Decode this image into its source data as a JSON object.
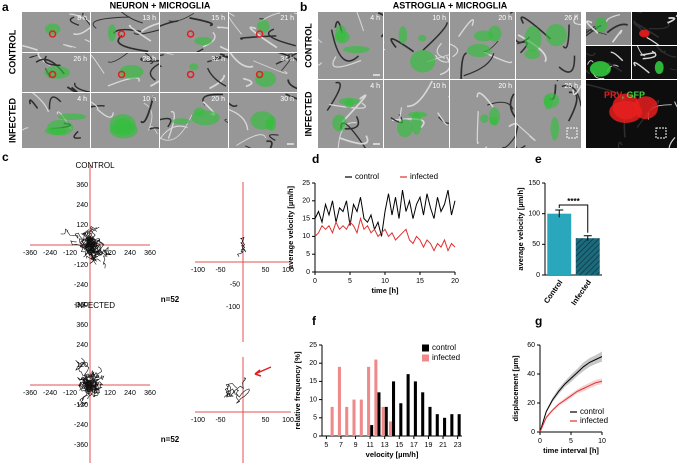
{
  "panel_a": {
    "letter": "a",
    "title": "NEURON + MICROGLIA",
    "rows": [
      {
        "label": "CONTROL",
        "times": [
          [
            "8 h",
            "13 h",
            "15 h",
            "21 h"
          ],
          [
            "26 h",
            "28 h",
            "32 h",
            "34 h"
          ]
        ]
      },
      {
        "label": "INFECTED",
        "times": [
          [
            "4 h",
            "10 h",
            "20 h",
            "30 h"
          ]
        ]
      }
    ]
  },
  "panel_b": {
    "letter": "b",
    "title": "ASTROGLIA + MICROGLIA",
    "rows": [
      {
        "label": "CONTROL",
        "times": [
          "4 h",
          "10 h",
          "20 h",
          "26 h"
        ]
      },
      {
        "label": "INFECTED",
        "times": [
          "4 h",
          "10 h",
          "20 h",
          "26 h"
        ]
      }
    ],
    "inset_label": [
      "PRV",
      ", GFP"
    ]
  },
  "panel_c": {
    "letter": "c",
    "plots": [
      {
        "title": "CONTROL",
        "n": "n=52"
      },
      {
        "title": "INFECTED",
        "n": "n=52"
      }
    ],
    "overview_ticks": [
      -360,
      -240,
      -120,
      120,
      240,
      360
    ],
    "zoom_xticks": [
      -100,
      -50,
      50,
      100
    ],
    "zoom_yticks": [
      -50,
      -100
    ]
  },
  "chart_data": [
    {
      "type": "line",
      "letter": "d",
      "ylabel": "average velocity [µm/h]",
      "xlabel": "time [h]",
      "x": [
        0,
        0.5,
        1,
        1.5,
        2,
        2.5,
        3,
        3.5,
        4,
        4.5,
        5,
        5.5,
        6,
        6.5,
        7,
        7.5,
        8,
        8.5,
        9,
        9.5,
        10,
        10.5,
        11,
        11.5,
        12,
        12.5,
        13,
        13.5,
        14,
        14.5,
        15,
        15.5,
        16,
        16.5,
        17,
        17.5,
        18,
        18.5,
        19,
        19.5,
        20
      ],
      "xlim": [
        0,
        20
      ],
      "xticks": [
        0,
        5,
        10,
        15,
        20
      ],
      "ylim": [
        0,
        25
      ],
      "yticks": [
        0,
        5,
        10,
        15,
        20,
        25
      ],
      "legend": "top",
      "series": [
        {
          "name": "control",
          "color": "#000000",
          "values": [
            15,
            17,
            14,
            19,
            16,
            20,
            14,
            18,
            17,
            20,
            13,
            19,
            17,
            21,
            15,
            14,
            16,
            12,
            14,
            10,
            17,
            22,
            16,
            21,
            15,
            23,
            17,
            20,
            15,
            19,
            21,
            16,
            22,
            18,
            15,
            21,
            17,
            19,
            23,
            16,
            20
          ]
        },
        {
          "name": "infected",
          "color": "#e03030",
          "values": [
            10,
            11,
            13,
            12,
            13,
            11,
            14,
            12,
            13,
            12,
            14,
            13,
            11,
            15,
            12,
            13,
            11,
            12,
            10,
            11,
            12,
            10,
            11,
            9,
            10,
            11,
            12,
            9,
            8,
            10,
            9,
            7,
            9,
            8,
            6,
            8,
            7,
            9,
            6,
            8,
            7
          ]
        }
      ]
    },
    {
      "type": "bar",
      "letter": "e",
      "ylabel": "average velocity [µm/h]",
      "categories": [
        "Control",
        "Infected"
      ],
      "values": [
        100,
        60
      ],
      "errors": [
        6,
        4
      ],
      "colors": [
        "#2aa7bd",
        "#1c6b7c"
      ],
      "hatch": [
        false,
        true
      ],
      "ylim": [
        0,
        150
      ],
      "yticks": [
        0,
        50,
        100,
        150
      ],
      "annotation": "****"
    },
    {
      "type": "grouped-bar",
      "letter": "f",
      "ylabel": "relative frequency [%]",
      "xlabel": "velocity [µm/h]",
      "x": [
        5,
        6,
        7,
        8,
        9,
        10,
        11,
        12,
        13,
        14,
        15,
        16,
        17,
        18,
        19,
        20,
        21,
        22,
        23
      ],
      "xlim": [
        4.4,
        23.6
      ],
      "xticks": [
        5,
        7,
        9,
        11,
        13,
        15,
        17,
        19,
        21,
        23
      ],
      "ylim": [
        0,
        25
      ],
      "yticks": [
        0,
        5,
        10,
        15,
        20,
        25
      ],
      "legend": "top-right",
      "series": [
        {
          "name": "control",
          "color": "#000000",
          "values": [
            0,
            0,
            0,
            0,
            0,
            0,
            3,
            12,
            8,
            15,
            9,
            17,
            15,
            12,
            8,
            6,
            5,
            6,
            6
          ]
        },
        {
          "name": "infected",
          "color": "#f08a8a",
          "values": [
            0,
            8,
            19,
            8,
            10,
            10,
            19,
            21,
            8,
            4,
            0,
            0,
            0,
            0,
            0,
            0,
            0,
            0,
            0
          ]
        }
      ]
    },
    {
      "type": "band-line",
      "letter": "g",
      "ylabel": "displacement [µm]",
      "xlabel": "time interval [h]",
      "x": [
        0,
        1,
        2,
        3,
        4,
        5,
        6,
        7,
        8,
        9,
        10
      ],
      "xlim": [
        0,
        10
      ],
      "xticks": [
        0,
        5,
        10
      ],
      "ylim": [
        0,
        60
      ],
      "yticks": [
        0,
        20,
        40,
        60
      ],
      "legend": "bottom-right",
      "series": [
        {
          "name": "control",
          "color": "#000000",
          "values": [
            0,
            14,
            22,
            28,
            33,
            37,
            41,
            45,
            48,
            50,
            52
          ],
          "errors": [
            0,
            1,
            1.5,
            2,
            2,
            2.5,
            2.5,
            3,
            3,
            3,
            3.5
          ]
        },
        {
          "name": "infected",
          "color": "#e03030",
          "values": [
            0,
            10,
            15,
            19,
            22,
            25,
            28,
            30,
            32,
            34,
            35
          ],
          "errors": [
            0,
            1,
            1,
            1,
            1.5,
            1.5,
            1.5,
            2,
            2,
            2,
            2
          ]
        }
      ]
    }
  ]
}
